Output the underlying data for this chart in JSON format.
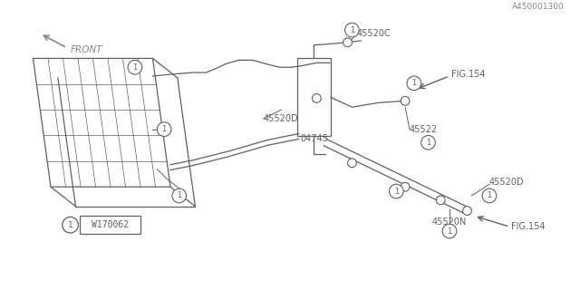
{
  "bg_color": "#ffffff",
  "line_color": "#606060",
  "text_color": "#606060",
  "fig_width": 6.4,
  "fig_height": 3.2,
  "dpi": 100,
  "bottom_code": "A450001300",
  "warning_text": "W170062",
  "front_text": "FRONT"
}
